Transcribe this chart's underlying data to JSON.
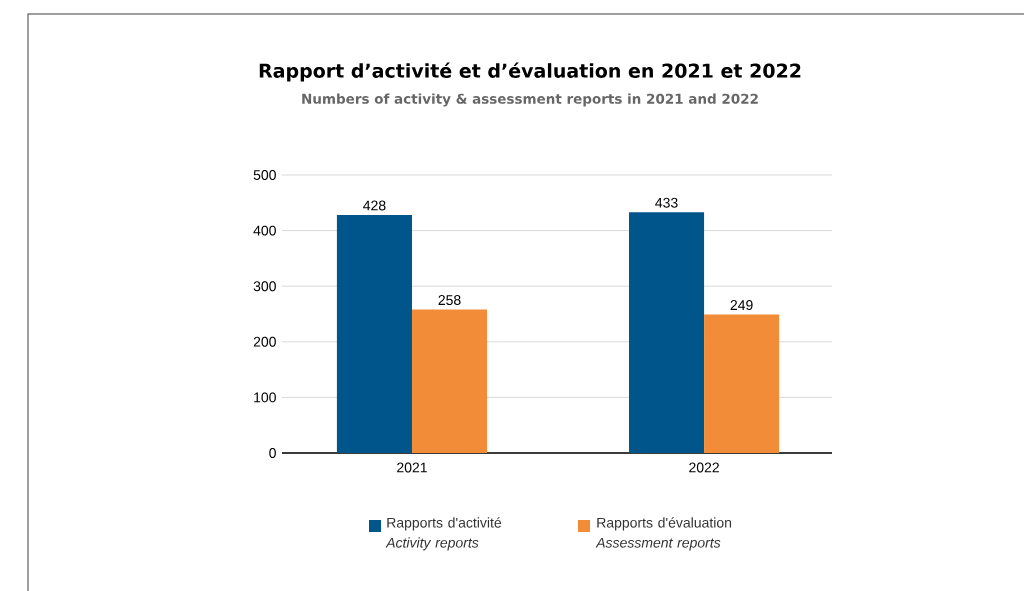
{
  "chart_data": {
    "type": "bar",
    "title": "Rapport d’activité et d’évaluation en 2021 et 2022",
    "subtitle": "Numbers of activity & assessment reports in 2021 and 2022",
    "categories": [
      "2021",
      "2022"
    ],
    "series": [
      {
        "name": "Rapports d'activité *Activity reports*",
        "color": "#00558b",
        "values": [
          428,
          433
        ]
      },
      {
        "name": "Rapports d'évaluation *Assessment reports*",
        "color": "#f28c38",
        "values": [
          258,
          249
        ]
      }
    ],
    "ylim": [
      0,
      500
    ],
    "yticks": [
      0,
      100,
      200,
      300,
      400,
      500
    ],
    "grid": "y",
    "legend": "bottom",
    "data_labels": true
  }
}
